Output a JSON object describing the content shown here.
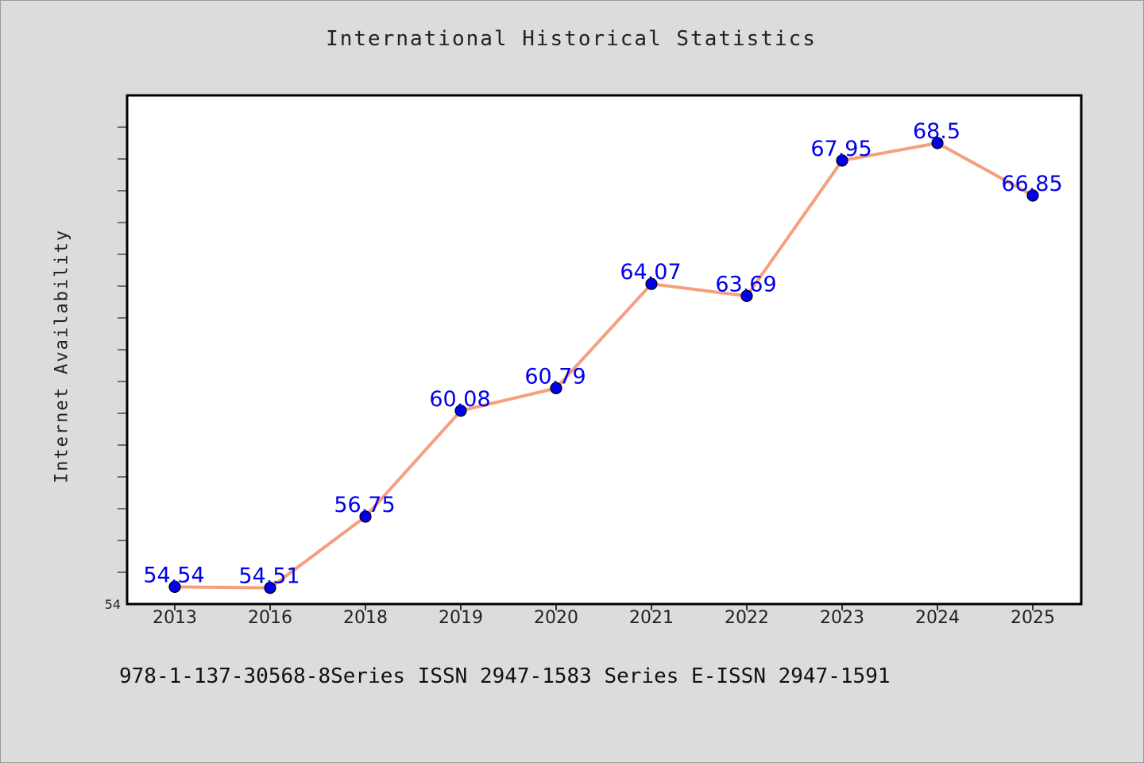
{
  "chart_data": {
    "type": "line",
    "title": "International Historical Statistics",
    "ylabel": "Internet Availability",
    "xlabel": "",
    "categories": [
      "2013",
      "2016",
      "2018",
      "2019",
      "2020",
      "2021",
      "2022",
      "2023",
      "2024",
      "2025"
    ],
    "series": [
      {
        "values": [
          54.54,
          54.51,
          56.75,
          60.08,
          60.79,
          64.07,
          63.69,
          67.95,
          68.5,
          66.85
        ],
        "labels": [
          "54.54",
          "54.51",
          "56.75",
          "60.08",
          "60.79",
          "64.07",
          "63.69",
          "67.95",
          "68.5",
          "66.85"
        ]
      }
    ],
    "ylim": [
      54,
      70
    ],
    "y_tick_labels": [
      "54"
    ],
    "grid": false,
    "legend": "none",
    "colors": {
      "line": "#f4a07f",
      "marker": "#0000ee",
      "data_label": "#0000ee",
      "background": "#dcdcdc",
      "plot_background": "#ffffff"
    }
  },
  "footer": {
    "text": "978-1-137-30568-8Series ISSN 2947-1583 Series E-ISSN 2947-1591"
  }
}
